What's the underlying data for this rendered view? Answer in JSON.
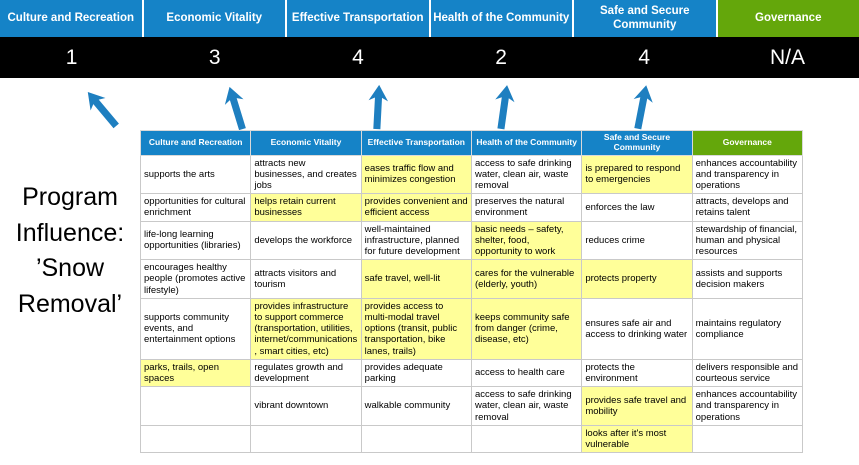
{
  "slide": {
    "title": "Program Influence: ’Snow Removal’"
  },
  "colors": {
    "blue": "#1583c7",
    "green": "#64a70b",
    "highlight": "#ffff99",
    "arrow": "#1e7fc0",
    "score_bg": "#000000"
  },
  "scoreboard": {
    "columns": [
      {
        "label": "Culture and Recreation",
        "score": "1",
        "color": "blue"
      },
      {
        "label": "Economic Vitality",
        "score": "3",
        "color": "blue"
      },
      {
        "label": "Effective Transportation",
        "score": "4",
        "color": "blue"
      },
      {
        "label": "Health of the Community",
        "score": "2",
        "color": "blue"
      },
      {
        "label": "Safe and Secure Community",
        "score": "4",
        "color": "blue"
      },
      {
        "label": "Governance",
        "score": "N/A",
        "color": "green"
      }
    ]
  },
  "matrix": {
    "headers": [
      {
        "label": "Culture and Recreation",
        "color": "blue"
      },
      {
        "label": "Economic Vitality",
        "color": "blue"
      },
      {
        "label": "Effective Transportation",
        "color": "blue"
      },
      {
        "label": "Health of the Community",
        "color": "blue"
      },
      {
        "label": "Safe and Secure Community",
        "color": "blue"
      },
      {
        "label": "Governance",
        "color": "green"
      }
    ],
    "rows": [
      [
        {
          "text": "supports the arts",
          "hl": false
        },
        {
          "text": "attracts new businesses, and creates jobs",
          "hl": false
        },
        {
          "text": "eases traffic flow and minimizes congestion",
          "hl": true
        },
        {
          "text": "access to safe drinking water, clean air, waste removal",
          "hl": false
        },
        {
          "text": "is prepared to respond to emergencies",
          "hl": true
        },
        {
          "text": "enhances accountability and transparency in operations",
          "hl": false
        }
      ],
      [
        {
          "text": "opportunities for cultural enrichment",
          "hl": false
        },
        {
          "text": "helps retain current businesses",
          "hl": true
        },
        {
          "text": "provides convenient and efficient access",
          "hl": true
        },
        {
          "text": "preserves the natural environment",
          "hl": false
        },
        {
          "text": "enforces the law",
          "hl": false
        },
        {
          "text": "attracts, develops and retains talent",
          "hl": false
        }
      ],
      [
        {
          "text": "life-long learning opportunities (libraries)",
          "hl": false
        },
        {
          "text": "develops the workforce",
          "hl": false
        },
        {
          "text": "well-maintained infrastructure, planned for future development",
          "hl": false
        },
        {
          "text": "basic needs – safety, shelter, food, opportunity to work",
          "hl": true
        },
        {
          "text": "reduces crime",
          "hl": false
        },
        {
          "text": "stewardship of financial, human and physical resources",
          "hl": false
        }
      ],
      [
        {
          "text": "encourages healthy people (promotes active lifestyle)",
          "hl": false
        },
        {
          "text": "attracts visitors and tourism",
          "hl": false
        },
        {
          "text": "safe travel, well-lit",
          "hl": true
        },
        {
          "text": "cares for the vulnerable (elderly, youth)",
          "hl": true
        },
        {
          "text": "protects property",
          "hl": true
        },
        {
          "text": "assists and supports decision makers",
          "hl": false
        }
      ],
      [
        {
          "text": "supports community events, and entertainment options",
          "hl": false
        },
        {
          "text": "provides infrastructure to support commerce (transportation, utilities, internet/communications, smart cities, etc)",
          "hl": true
        },
        {
          "text": "provides access to multi-modal travel options (transit, public transportation, bike lanes, trails)",
          "hl": true
        },
        {
          "text": "keeps community safe from danger (crime, disease, etc)",
          "hl": true
        },
        {
          "text": "ensures safe air and access to drinking water",
          "hl": false
        },
        {
          "text": "maintains regulatory compliance",
          "hl": false
        }
      ],
      [
        {
          "text": "parks, trails, open spaces",
          "hl": true
        },
        {
          "text": "regulates growth and development",
          "hl": false
        },
        {
          "text": "provides adequate parking",
          "hl": false
        },
        {
          "text": "access to health care",
          "hl": false
        },
        {
          "text": "protects the environment",
          "hl": false
        },
        {
          "text": "delivers responsible and courteous service",
          "hl": false
        }
      ],
      [
        {
          "text": "",
          "hl": false
        },
        {
          "text": "vibrant downtown",
          "hl": false
        },
        {
          "text": "walkable community",
          "hl": false
        },
        {
          "text": "access to safe drinking water, clean air, waste removal",
          "hl": false
        },
        {
          "text": "provides safe travel and mobility",
          "hl": true
        },
        {
          "text": "enhances accountability and transparency in operations",
          "hl": false
        }
      ],
      [
        {
          "text": "",
          "hl": false
        },
        {
          "text": "",
          "hl": false
        },
        {
          "text": "",
          "hl": false
        },
        {
          "text": "",
          "hl": false
        },
        {
          "text": "looks after it's most vulnerable",
          "hl": true
        },
        {
          "text": "",
          "hl": false
        }
      ]
    ]
  }
}
